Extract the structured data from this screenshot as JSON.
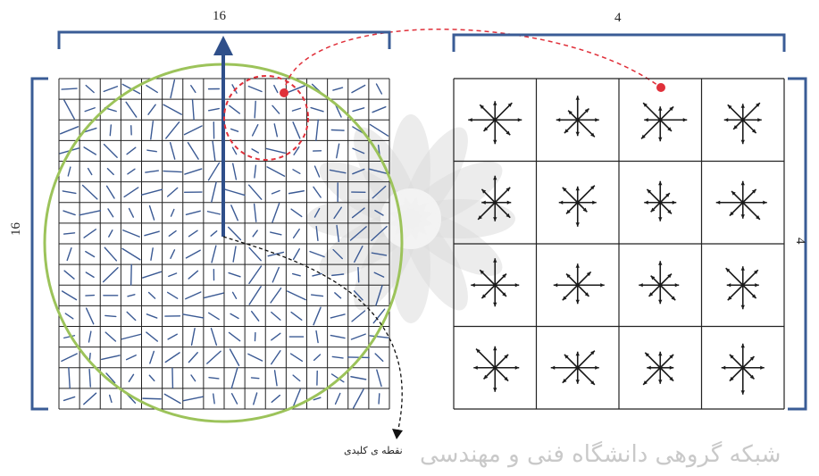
{
  "labels": {
    "left_top_size": "16",
    "left_side_size": "16",
    "right_top_size": "4",
    "right_side_size": "4",
    "keypoint_caption": "نقطه ی کلیدی"
  },
  "watermark": {
    "text": "شبکه گروهی دانشگاه فنی و مهندسی",
    "icon": "flower-watermark"
  },
  "colors": {
    "bracket": "#3a5c96",
    "arrow": "#2f4f8a",
    "circle": "#9cc35a",
    "highlight": "#e0303a",
    "grid": "#222222",
    "watermark": "#cfcfcf"
  },
  "left_grid": {
    "rows": 16,
    "cols": 16
  },
  "right_grid": {
    "rows": 4,
    "cols": 4
  },
  "descriptor_histograms": [
    [
      [
        1.0,
        0.9,
        0.7,
        0.8,
        1.0,
        0.6,
        0.9,
        0.8
      ],
      [
        0.8,
        0.6,
        0.9,
        0.5,
        0.8,
        0.7,
        0.6,
        0.9
      ],
      [
        1.0,
        0.7,
        0.5,
        0.9,
        0.6,
        1.0,
        0.8,
        0.6
      ],
      [
        0.7,
        0.9,
        0.6,
        0.8,
        0.7,
        0.5,
        0.9,
        0.7
      ]
    ],
    [
      [
        0.6,
        0.8,
        1.0,
        0.7,
        0.5,
        0.9,
        0.7,
        0.8
      ],
      [
        0.7,
        0.9,
        0.6,
        0.8,
        0.7,
        0.6,
        0.9,
        0.5
      ],
      [
        0.6,
        0.5,
        0.8,
        0.7,
        0.6,
        0.5,
        0.7,
        0.6
      ],
      [
        0.9,
        0.7,
        0.8,
        0.6,
        1.0,
        0.7,
        0.6,
        0.9
      ]
    ],
    [
      [
        0.9,
        0.6,
        1.0,
        0.8,
        0.9,
        0.7,
        0.8,
        0.6
      ],
      [
        1.0,
        0.7,
        0.8,
        0.6,
        0.9,
        0.8,
        0.7,
        0.6
      ],
      [
        0.7,
        0.6,
        0.9,
        0.5,
        0.8,
        0.6,
        0.7,
        0.8
      ],
      [
        0.6,
        0.8,
        0.7,
        0.9,
        0.6,
        0.8,
        0.9,
        0.7
      ]
    ],
    [
      [
        0.9,
        0.7,
        0.8,
        1.0,
        0.8,
        0.6,
        0.9,
        0.7
      ],
      [
        0.8,
        0.9,
        0.6,
        0.7,
        1.0,
        0.8,
        0.6,
        0.9
      ],
      [
        0.5,
        0.7,
        0.6,
        0.8,
        0.5,
        0.9,
        0.6,
        0.7
      ],
      [
        0.8,
        0.6,
        0.9,
        0.7,
        0.8,
        0.7,
        1.0,
        0.6
      ]
    ]
  ]
}
